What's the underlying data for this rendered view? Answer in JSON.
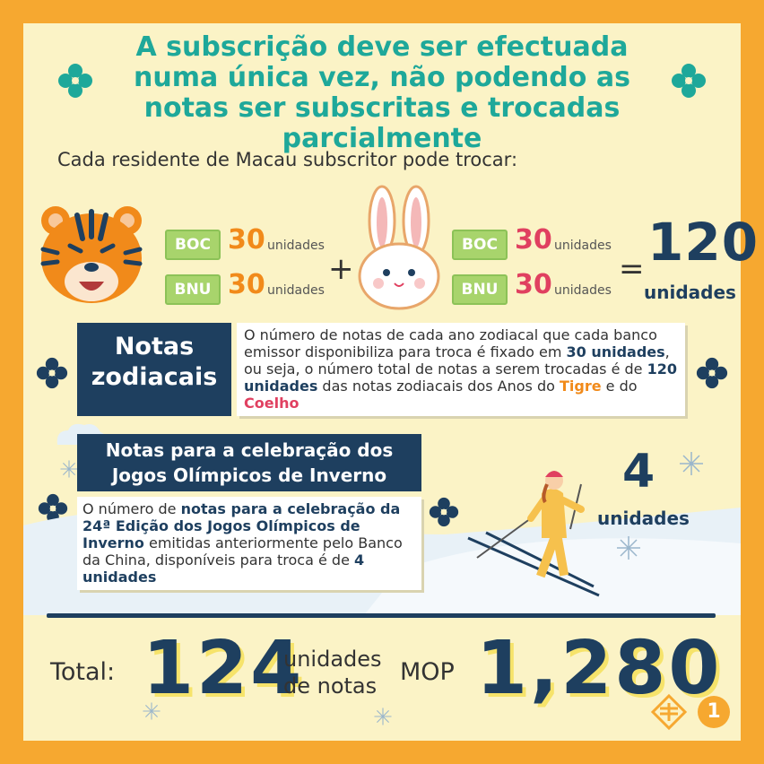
{
  "headline": "A subscrição deve ser efectuada numa única vez, não podendo as notas ser subscritas e trocadas parcialmente",
  "intro": "Cada residente de Macau subscritor pode trocar:",
  "tiger": {
    "boc_label": "BOC",
    "boc_amount": "30",
    "boc_unit": "unidades",
    "bnu_label": "BNU",
    "bnu_amount": "30",
    "bnu_unit": "unidades"
  },
  "rabbit": {
    "boc_label": "BOC",
    "boc_amount": "30",
    "boc_unit": "unidades",
    "bnu_label": "BNU",
    "bnu_amount": "30",
    "bnu_unit": "unidades"
  },
  "plus": "+",
  "equals": "=",
  "total_zodiac": {
    "number": "120",
    "unit": "unidades"
  },
  "zodiac_section": {
    "title_line1": "Notas",
    "title_line2": "zodiacais",
    "text_p1": "O número de notas de cada ano zodiacal que cada banco emissor disponibiliza para troca é fixado em ",
    "text_b1": "30 unidades",
    "text_p2": ", ou seja, o número total de notas a serem trocadas é de ",
    "text_b2": "120 unidades",
    "text_p3": " das notas zodiacais dos Anos do ",
    "text_tigre": "Tigre",
    "text_p4": " e do ",
    "text_coelho": "Coelho"
  },
  "olympic_section": {
    "title_line1": "Notas para a celebração dos",
    "title_line2": "Jogos Olímpicos de Inverno",
    "text_p1": "O número de ",
    "text_b1": "notas para a celebração da 24ª Edição dos Jogos Olímpicos de Inverno",
    "text_p2": " emitidas anteriormente pelo Banco da China, disponíveis para troca é de ",
    "text_b2": "4 unidades",
    "count_number": "4",
    "count_unit": "unidades"
  },
  "totals": {
    "label": "Total:",
    "notes_number": "124",
    "notes_unit_line1": "unidades",
    "notes_unit_line2": "de notas",
    "currency": "MOP",
    "amount": "1,280"
  },
  "badge_number": "1",
  "colors": {
    "frame": "#f6a830",
    "background": "#fbf3c6",
    "headline": "#1ea89a",
    "navy": "#1e3f5f",
    "orange": "#f18a1a",
    "pink": "#e04060",
    "tag_green": "#a8d46c"
  }
}
